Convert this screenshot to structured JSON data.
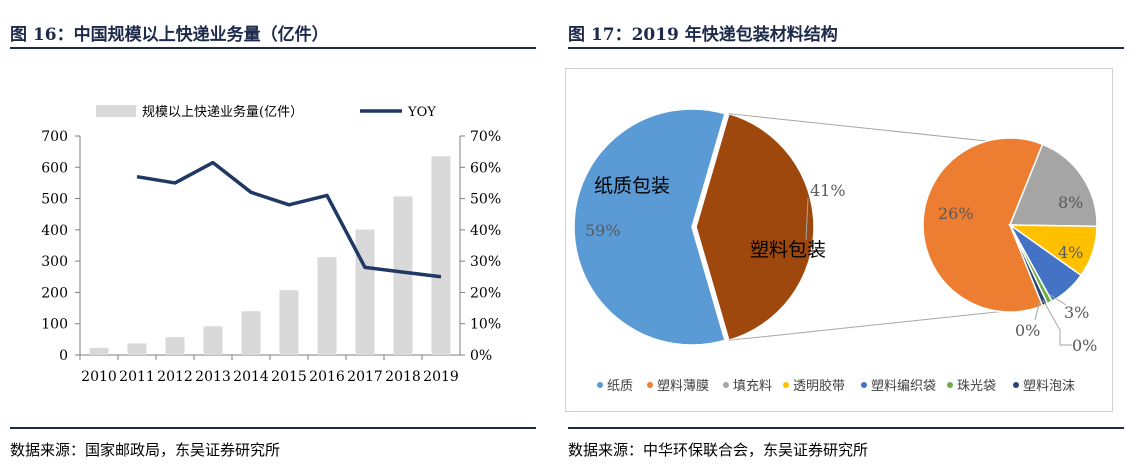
{
  "left": {
    "title": "图 16：中国规模以上快递业务量（亿件）",
    "source": "数据来源：国家邮政局，东吴证券研究所"
  },
  "right": {
    "title": "图 17：2019 年快递包装材料结构",
    "source": "数据来源：中华环保联合会，东吴证券研究所"
  },
  "chart_data": [
    {
      "type": "bar+line",
      "categories": [
        "2010",
        "2011",
        "2012",
        "2013",
        "2014",
        "2015",
        "2016",
        "2017",
        "2018",
        "2019"
      ],
      "series": [
        {
          "name": "规模以上快递业务量(亿件）",
          "type": "bar",
          "axis": "left",
          "values": [
            23,
            37,
            57,
            92,
            140,
            207,
            313,
            401,
            507,
            635
          ]
        },
        {
          "name": "YOY",
          "type": "line",
          "axis": "right",
          "values": [
            null,
            57,
            55,
            61.5,
            52,
            48,
            51,
            28,
            26.5,
            25
          ]
        }
      ],
      "y_left": {
        "min": 0,
        "max": 700,
        "ticks": [
          "0",
          "100",
          "200",
          "300",
          "400",
          "500",
          "600",
          "700"
        ]
      },
      "y_right": {
        "min": 0,
        "max": 70,
        "ticks": [
          "0%",
          "10%",
          "20%",
          "30%",
          "40%",
          "50%",
          "60%",
          "70%"
        ]
      },
      "colors": {
        "bar": "#d9d9d9",
        "line": "#1f3864"
      },
      "legend_position": "top"
    },
    {
      "type": "pie",
      "main": {
        "slices": [
          {
            "label": "纸质包装",
            "pct_label": "59%",
            "value": 59,
            "color": "#5b9bd5"
          },
          {
            "label": "塑料包装",
            "pct_label": "41%",
            "value": 41,
            "color": "#9e480e"
          }
        ]
      },
      "sub": {
        "slices": [
          {
            "name": "塑料薄膜",
            "pct_label": "26%",
            "value": 26,
            "color": "#ed7d31"
          },
          {
            "name": "填充料",
            "pct_label": "8%",
            "value": 8,
            "color": "#a5a5a5"
          },
          {
            "name": "透明胶带",
            "pct_label": "4%",
            "value": 4,
            "color": "#ffc000"
          },
          {
            "name": "塑料编织袋",
            "pct_label": "3%",
            "value": 3,
            "color": "#4472c4"
          },
          {
            "name": "珠光袋",
            "pct_label": "0%",
            "value": 0.4,
            "color": "#70ad47"
          },
          {
            "name": "塑料泡沫",
            "pct_label": "0%",
            "value": 0.4,
            "color": "#264478"
          }
        ]
      },
      "legend": [
        "纸质",
        "塑料薄膜",
        "填充料",
        "透明胶带",
        "塑料编织袋",
        "珠光袋",
        "塑料泡沫"
      ],
      "legend_colors": [
        "#5b9bd5",
        "#ed7d31",
        "#a5a5a5",
        "#ffc000",
        "#4472c4",
        "#70ad47",
        "#264478"
      ],
      "legend_position": "bottom"
    }
  ]
}
